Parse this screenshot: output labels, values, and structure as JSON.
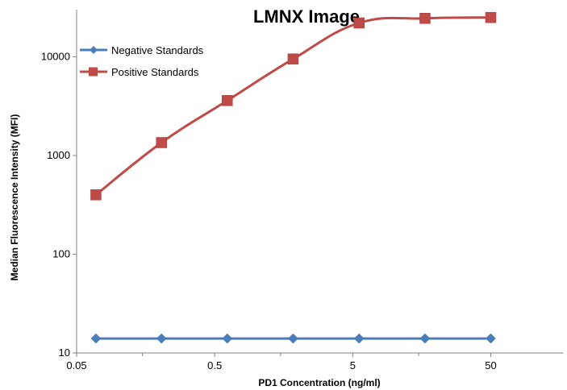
{
  "chart_data": {
    "type": "line",
    "title": "LMNX Image",
    "xlabel": "PD1 Concentration  (ng/ml)",
    "ylabel": "Median Fluorescence Intensity (MFI)",
    "x_scale": "log",
    "y_scale": "log",
    "xlim": [
      0.05,
      100
    ],
    "ylim": [
      10,
      30000
    ],
    "x_ticks": [
      "0.05",
      "0.5",
      "5",
      "50"
    ],
    "x_tick_values": [
      0.05,
      0.5,
      5,
      50
    ],
    "y_ticks": [
      "10",
      "100",
      "1000",
      "10000"
    ],
    "y_tick_values": [
      10,
      100,
      1000,
      10000
    ],
    "grid": false,
    "legend_position": "top-left",
    "series": [
      {
        "name": "Negative Standards",
        "color": "#4a7ebb",
        "marker": "diamond",
        "x": [
          0.069,
          0.206,
          0.617,
          1.85,
          5.56,
          16.7,
          50
        ],
        "y": [
          14,
          14,
          14,
          14,
          14,
          14,
          14
        ]
      },
      {
        "name": "Positive Standards",
        "color": "#be4b48",
        "marker": "square",
        "x": [
          0.069,
          0.206,
          0.617,
          1.85,
          5.56,
          16.7,
          50
        ],
        "y": [
          400,
          1350,
          3600,
          9500,
          22000,
          24500,
          25000
        ]
      }
    ]
  }
}
